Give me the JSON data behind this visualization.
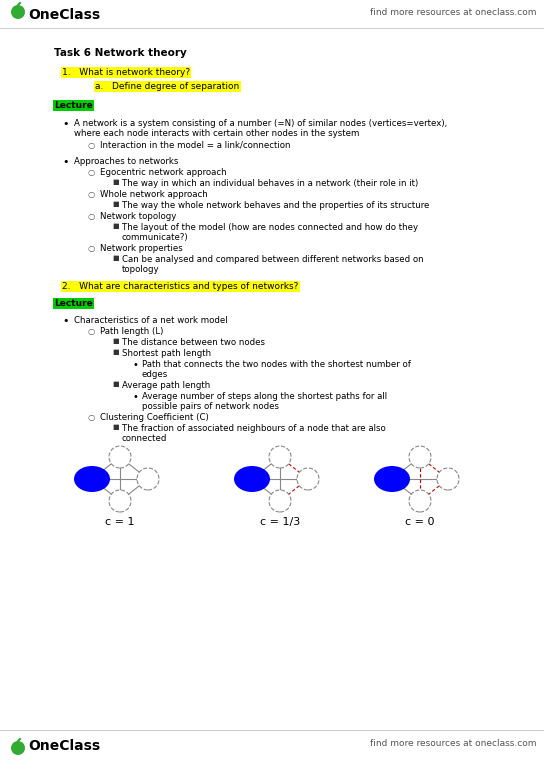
{
  "bg_color": "#ffffff",
  "header_text": "find more resources at oneclass.com",
  "footer_text": "find more resources at oneclass.com",
  "title_bold": "Task 6 Network theory",
  "highlight_yellow": "#ffff00",
  "highlight_green": "#00cc00",
  "text_color": "#000000",
  "gray_color": "#555555",
  "figsize": [
    5.44,
    7.7
  ],
  "dpi": 100
}
